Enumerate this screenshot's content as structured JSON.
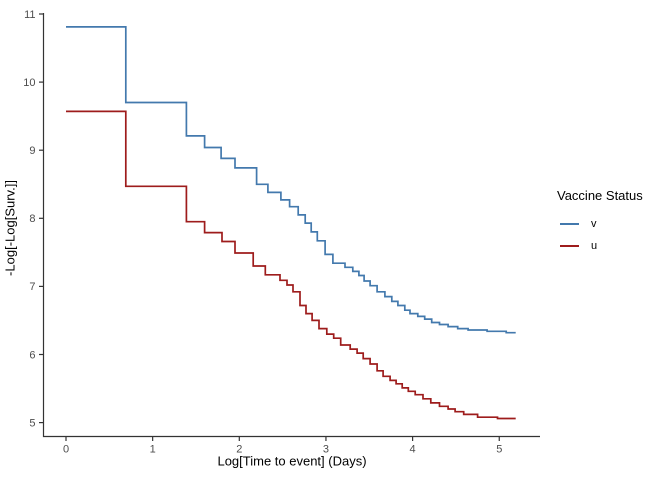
{
  "figure": {
    "background": "#ffffff",
    "x_axis": {
      "title": "Log[Time to event] (Days)",
      "ticks": [
        0,
        1,
        2,
        3,
        4,
        5
      ]
    },
    "y_axis": {
      "title": "-Log[-Log[Surv.]]",
      "ticks": [
        5,
        6,
        7,
        8,
        9,
        10,
        11
      ]
    },
    "legend": {
      "title": "Vaccine Status",
      "items": [
        {
          "label": "v",
          "color": "#4379ad"
        },
        {
          "label": "u",
          "color": "#9e1c1c"
        }
      ]
    },
    "colors": {
      "axis_line": "#333333",
      "tick_label": "#4d4d4d"
    }
  },
  "chart_data": {
    "type": "line",
    "subtype": "step-survival",
    "title": "",
    "xlabel": "Log[Time to event] (Days)",
    "ylabel": "-Log[-Log[Surv.]]",
    "xlim": [
      -0.27,
      5.48
    ],
    "ylim": [
      4.8,
      11.05
    ],
    "grid": false,
    "legend_position": "right",
    "legend_title": "Vaccine Status",
    "series": [
      {
        "name": "v",
        "color": "#4379ad",
        "x_end": 5.19,
        "points": [
          [
            0,
            10.81
          ],
          [
            0.69,
            9.7
          ],
          [
            1.39,
            9.21
          ],
          [
            1.6,
            9.04
          ],
          [
            1.79,
            8.88
          ],
          [
            1.95,
            8.74
          ],
          [
            2.2,
            8.5
          ],
          [
            2.33,
            8.38
          ],
          [
            2.48,
            8.27
          ],
          [
            2.58,
            8.17
          ],
          [
            2.68,
            8.05
          ],
          [
            2.76,
            7.93
          ],
          [
            2.83,
            7.8
          ],
          [
            2.9,
            7.67
          ],
          [
            2.99,
            7.47
          ],
          [
            3.08,
            7.34
          ],
          [
            3.22,
            7.28
          ],
          [
            3.31,
            7.22
          ],
          [
            3.38,
            7.16
          ],
          [
            3.44,
            7.08
          ],
          [
            3.51,
            7.01
          ],
          [
            3.59,
            6.92
          ],
          [
            3.68,
            6.85
          ],
          [
            3.76,
            6.78
          ],
          [
            3.83,
            6.72
          ],
          [
            3.91,
            6.65
          ],
          [
            3.97,
            6.6
          ],
          [
            4.06,
            6.56
          ],
          [
            4.14,
            6.52
          ],
          [
            4.22,
            6.47
          ],
          [
            4.31,
            6.44
          ],
          [
            4.41,
            6.41
          ],
          [
            4.52,
            6.38
          ],
          [
            4.64,
            6.36
          ],
          [
            4.86,
            6.34
          ],
          [
            5.08,
            6.32
          ]
        ]
      },
      {
        "name": "u",
        "color": "#9e1c1c",
        "x_end": 5.19,
        "points": [
          [
            0,
            9.57
          ],
          [
            0.69,
            8.47
          ],
          [
            1.39,
            7.95
          ],
          [
            1.6,
            7.79
          ],
          [
            1.8,
            7.66
          ],
          [
            1.95,
            7.49
          ],
          [
            2.16,
            7.3
          ],
          [
            2.3,
            7.17
          ],
          [
            2.47,
            7.09
          ],
          [
            2.55,
            7.02
          ],
          [
            2.62,
            6.92
          ],
          [
            2.7,
            6.72
          ],
          [
            2.77,
            6.6
          ],
          [
            2.84,
            6.5
          ],
          [
            2.92,
            6.38
          ],
          [
            3.01,
            6.3
          ],
          [
            3.09,
            6.24
          ],
          [
            3.17,
            6.14
          ],
          [
            3.28,
            6.08
          ],
          [
            3.36,
            6.02
          ],
          [
            3.43,
            5.94
          ],
          [
            3.51,
            5.86
          ],
          [
            3.59,
            5.76
          ],
          [
            3.66,
            5.68
          ],
          [
            3.74,
            5.62
          ],
          [
            3.81,
            5.57
          ],
          [
            3.88,
            5.51
          ],
          [
            3.95,
            5.46
          ],
          [
            4.03,
            5.41
          ],
          [
            4.12,
            5.35
          ],
          [
            4.21,
            5.29
          ],
          [
            4.31,
            5.24
          ],
          [
            4.41,
            5.2
          ],
          [
            4.49,
            5.16
          ],
          [
            4.59,
            5.12
          ],
          [
            4.75,
            5.08
          ],
          [
            4.98,
            5.06
          ]
        ]
      }
    ]
  }
}
